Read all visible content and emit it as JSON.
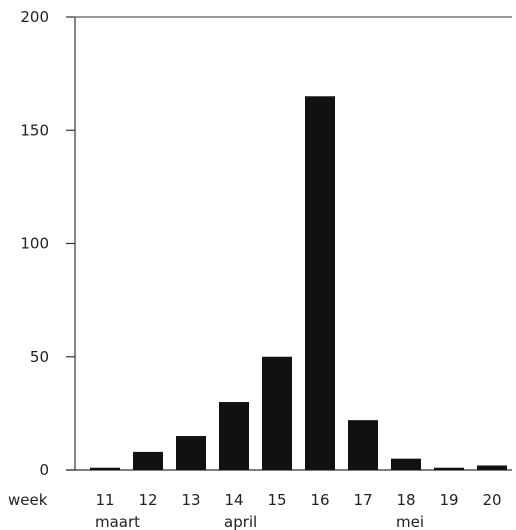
{
  "chart_data": {
    "type": "bar",
    "x_title": "week",
    "categories": [
      "11",
      "12",
      "13",
      "14",
      "15",
      "16",
      "17",
      "18",
      "19",
      "20"
    ],
    "values": [
      1,
      8,
      15,
      30,
      50,
      165,
      22,
      5,
      1,
      2
    ],
    "ylim": [
      0,
      200
    ],
    "yticks": [
      "0",
      "50",
      "100",
      "150",
      "200"
    ],
    "month_labels": [
      {
        "text": "maart",
        "week": "11"
      },
      {
        "text": "april",
        "week": "14"
      },
      {
        "text": "mei",
        "week": "18"
      }
    ],
    "grid": false,
    "colors": {
      "bar": "#111111",
      "axis": "#333333",
      "text": "#222222"
    }
  }
}
